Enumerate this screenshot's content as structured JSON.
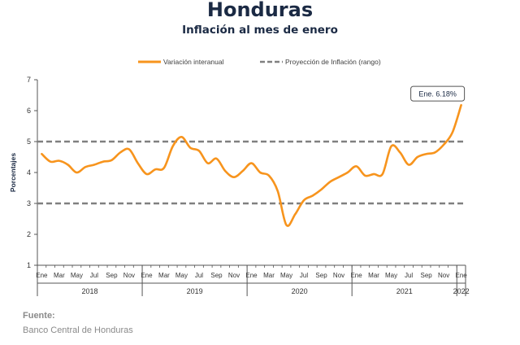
{
  "page": {
    "title": "Honduras",
    "subtitle": "Inflación al mes de enero",
    "source_label": "Fuente:",
    "source_text": "Banco Central de Honduras"
  },
  "chart_data": {
    "type": "line",
    "title": "Honduras",
    "subtitle": "Inflación al mes de enero",
    "ylabel": "Porcentajes",
    "xlabel": "",
    "ylim": [
      1,
      7
    ],
    "yticks": [
      1,
      2,
      3,
      4,
      5,
      6,
      7
    ],
    "grid": false,
    "legend_position": "top",
    "month_tick_labels": [
      "Ene",
      "Mar",
      "May",
      "Jul",
      "Sep",
      "Nov"
    ],
    "years": [
      "2018",
      "2019",
      "2020",
      "2021",
      "2022"
    ],
    "last_year_label": "2022",
    "last_month_label": "Ene",
    "series": [
      {
        "name": "Variación interanual",
        "type": "line",
        "color": "#f7941d",
        "values": [
          4.6,
          4.35,
          4.38,
          4.25,
          4.0,
          4.18,
          4.25,
          4.35,
          4.4,
          4.65,
          4.75,
          4.3,
          3.95,
          4.1,
          4.15,
          4.85,
          5.15,
          4.8,
          4.7,
          4.3,
          4.45,
          4.05,
          3.85,
          4.05,
          4.3,
          4.0,
          3.9,
          3.4,
          2.3,
          2.65,
          3.1,
          3.25,
          3.45,
          3.7,
          3.85,
          4.0,
          4.2,
          3.9,
          3.95,
          3.95,
          4.85,
          4.65,
          4.25,
          4.5,
          4.6,
          4.65,
          4.9,
          5.3,
          6.18
        ]
      },
      {
        "name": "Proyección de Inflación (rango)",
        "type": "reference",
        "color": "#808080",
        "values_upper": 5.0,
        "values_lower": 3.0
      }
    ],
    "annotation": {
      "label": "Ene. 6.18%",
      "value": 6.18,
      "point_index": 48
    }
  }
}
